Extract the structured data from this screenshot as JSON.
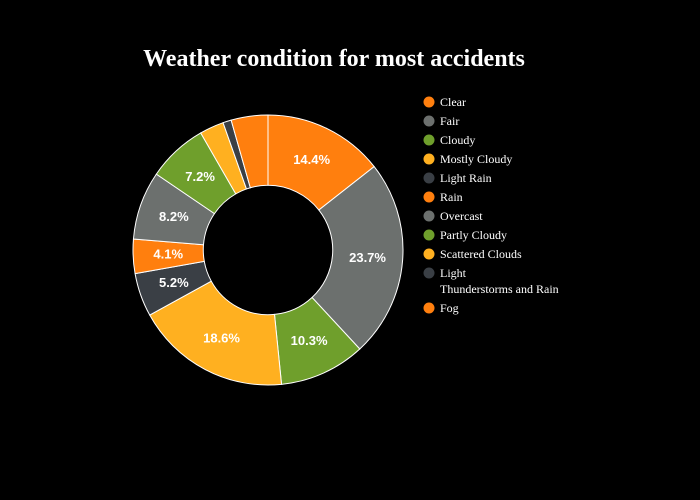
{
  "chart_data": {
    "type": "pie",
    "title": "Weather condition for most accidents",
    "hole": 0.35,
    "legend_position": "right",
    "slices": [
      {
        "label": "Clear",
        "value": 14.4,
        "color": "#ff7f0e",
        "show_label": true
      },
      {
        "label": "Fair",
        "value": 23.7,
        "color": "#6c706e",
        "show_label": true
      },
      {
        "label": "Cloudy",
        "value": 10.3,
        "color": "#6f9f2c",
        "show_label": true
      },
      {
        "label": "Mostly Cloudy",
        "value": 18.6,
        "color": "#ffb020",
        "show_label": true
      },
      {
        "label": "Light Rain",
        "value": 5.2,
        "color": "#3a3f45",
        "show_label": true
      },
      {
        "label": "Rain",
        "value": 4.1,
        "color": "#ff7f0e",
        "show_label": true
      },
      {
        "label": "Overcast",
        "value": 8.2,
        "color": "#6c706e",
        "show_label": true
      },
      {
        "label": "Partly Cloudy",
        "value": 7.2,
        "color": "#6f9f2c",
        "show_label": true
      },
      {
        "label": "Scattered Clouds",
        "value": 2.9,
        "color": "#ffb020",
        "show_label": false
      },
      {
        "label": "Light Thunderstorms and Rain",
        "value": 1.0,
        "color": "#3a3f45",
        "show_label": false
      },
      {
        "label": "Fog",
        "value": 4.4,
        "color": "#ff7f0e",
        "show_label": false
      }
    ]
  }
}
